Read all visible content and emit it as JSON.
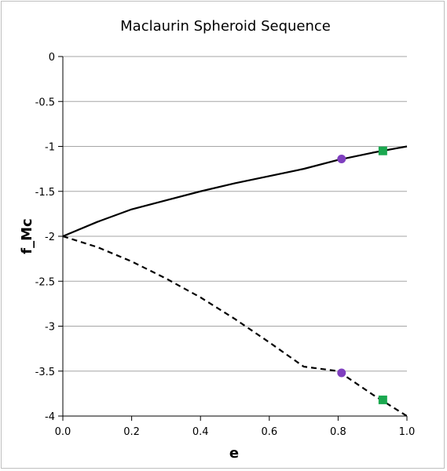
{
  "chart_data": {
    "type": "line",
    "title": "Maclaurin Spheroid Sequence",
    "xlabel": "e",
    "ylabel": "f_Mc",
    "xlim": [
      0,
      1
    ],
    "ylim": [
      -4,
      0
    ],
    "x_ticks": [
      "0.0",
      "0.2",
      "0.4",
      "0.6",
      "0.8",
      "1.0"
    ],
    "y_ticks": [
      "0",
      "-0.5",
      "-1",
      "-1.5",
      "-2",
      "-2.5",
      "-3",
      "-3.5",
      "-4"
    ],
    "grid": "horizontal",
    "legend": "none",
    "series": [
      {
        "style": "solid",
        "color": "#000000",
        "x": [
          0.0,
          0.1,
          0.2,
          0.3,
          0.4,
          0.5,
          0.6,
          0.7,
          0.8,
          0.9,
          1.0
        ],
        "y": [
          -2.0,
          -1.84,
          -1.7,
          -1.6,
          -1.5,
          -1.41,
          -1.33,
          -1.25,
          -1.15,
          -1.07,
          -1.0
        ]
      },
      {
        "style": "dashed",
        "color": "#000000",
        "x": [
          0.0,
          0.1,
          0.2,
          0.3,
          0.4,
          0.5,
          0.6,
          0.7,
          0.8,
          0.9,
          1.0
        ],
        "y": [
          -2.0,
          -2.12,
          -2.28,
          -2.47,
          -2.68,
          -2.92,
          -3.18,
          -3.45,
          -3.5,
          -3.76,
          -4.0
        ]
      }
    ],
    "markers": [
      {
        "shape": "circle",
        "color": "#7f3fbf",
        "x": 0.81,
        "y": -1.14
      },
      {
        "shape": "circle",
        "color": "#7f3fbf",
        "x": 0.81,
        "y": -3.52
      },
      {
        "shape": "square",
        "color": "#1aa84f",
        "x": 0.93,
        "y": -1.05
      },
      {
        "shape": "square",
        "color": "#1aa84f",
        "x": 0.93,
        "y": -3.82
      }
    ]
  }
}
